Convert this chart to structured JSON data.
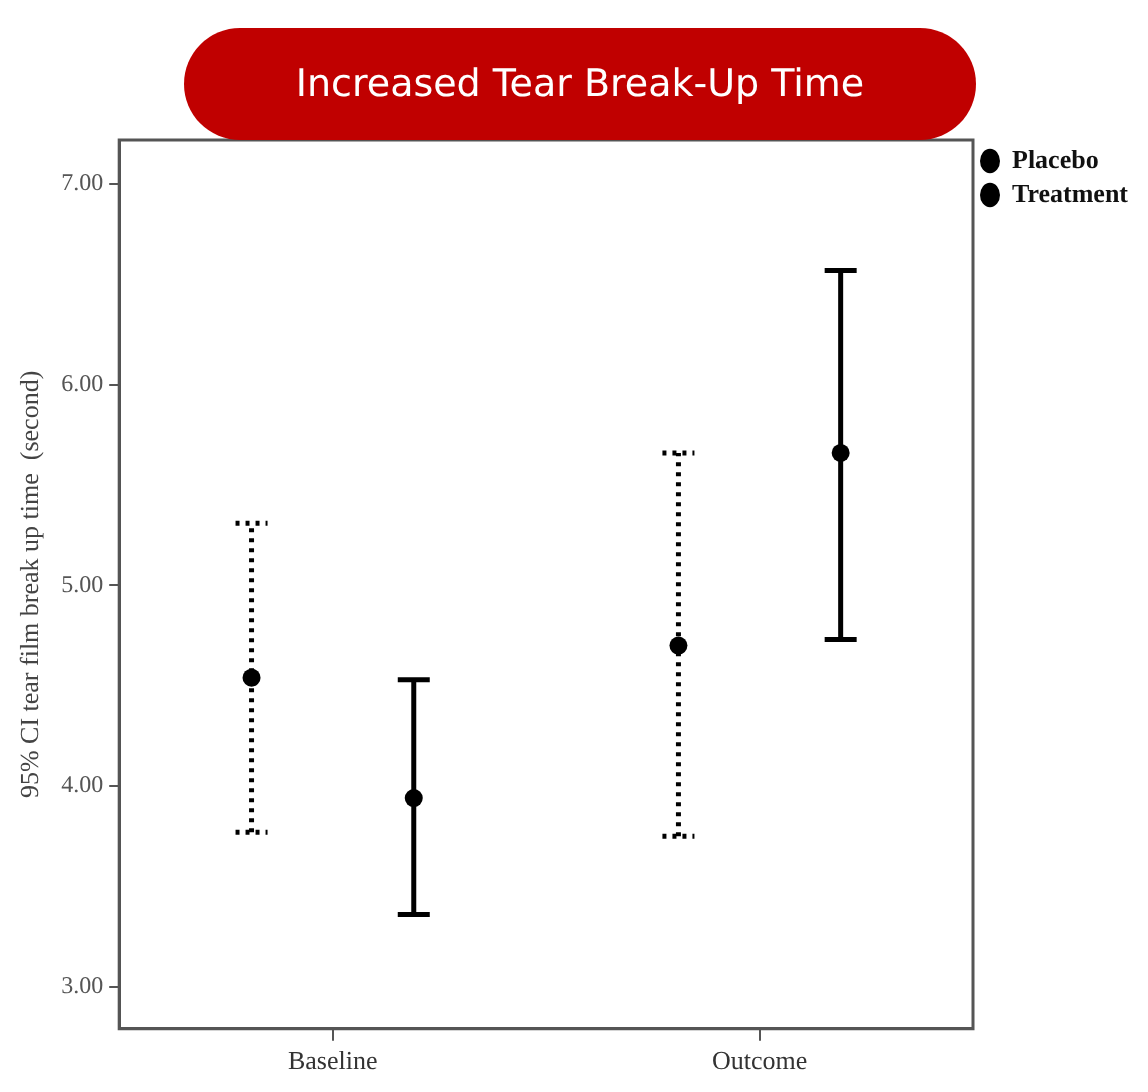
{
  "chart_data": {
    "type": "scatter",
    "title": "Increased Tear Break-Up Time",
    "ylabel": "95% CI tear film break up time  (second)",
    "categories": [
      "Baseline",
      "Outcome"
    ],
    "series": [
      {
        "name": "Placebo",
        "color": "#000000",
        "values": [
          4.54,
          4.7
        ],
        "errors": [
          [
            3.77,
            5.31
          ],
          [
            3.75,
            5.66
          ]
        ],
        "line_style": "dotted"
      },
      {
        "name": "Treatment",
        "color": "#000000",
        "values": [
          3.94,
          5.66
        ],
        "errors": [
          [
            3.36,
            4.53
          ],
          [
            4.73,
            6.57
          ]
        ],
        "line_style": "solid"
      }
    ],
    "ylim": [
      2.79,
      7.22
    ],
    "yticks": [
      {
        "value": 3,
        "label": "3.00"
      },
      {
        "value": 4,
        "label": "4.00"
      },
      {
        "value": 5,
        "label": "5.00"
      },
      {
        "value": 6,
        "label": "6.00"
      },
      {
        "value": 7,
        "label": "7.00"
      }
    ],
    "marker": "circle",
    "grid": false,
    "legend": "top right"
  }
}
